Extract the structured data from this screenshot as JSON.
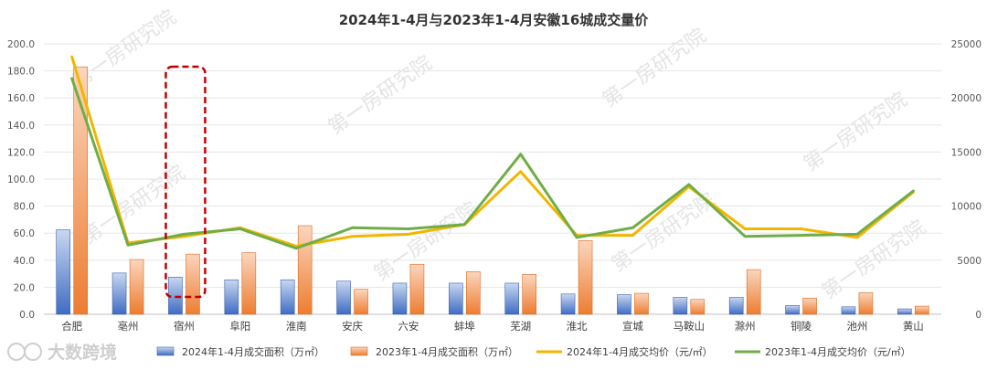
{
  "chart_data": {
    "type": "bar",
    "title": "2024年1-4月与2023年1-4月安徽16城成交量价",
    "categories": [
      "合肥",
      "亳州",
      "宿州",
      "阜阳",
      "淮南",
      "安庆",
      "六安",
      "蚌埠",
      "芜湖",
      "淮北",
      "宣城",
      "马鞍山",
      "滁州",
      "铜陵",
      "池州",
      "黄山"
    ],
    "ylim": [
      0,
      200
    ],
    "y2lim": [
      0,
      25000
    ],
    "y_ticks": [
      "0.0",
      "20.0",
      "40.0",
      "60.0",
      "80.0",
      "100.0",
      "120.0",
      "140.0",
      "160.0",
      "180.0",
      "200.0"
    ],
    "y2_ticks": [
      "0",
      "5000",
      "10000",
      "15000",
      "20000",
      "25000"
    ],
    "series": [
      {
        "name": "2024年1-4月成交面积（万㎡）",
        "kind": "bar",
        "axis": "left",
        "color": "#4472c4",
        "values": [
          62.5,
          30.5,
          27.5,
          25.5,
          25.5,
          24.5,
          23.0,
          23.0,
          23.0,
          15.0,
          14.5,
          12.5,
          12.5,
          6.5,
          5.5,
          4.0
        ]
      },
      {
        "name": "2023年1-4月成交面积（万㎡）",
        "kind": "bar",
        "axis": "left",
        "color": "#ed7d31",
        "values": [
          183.0,
          40.5,
          44.5,
          45.5,
          65.5,
          18.5,
          37.0,
          31.5,
          29.5,
          54.5,
          15.5,
          11.0,
          33.0,
          12.0,
          16.0,
          6.0
        ]
      },
      {
        "name": "2024年1-4月成交均价（元/㎡）",
        "kind": "line",
        "axis": "right",
        "color": "#f2b600",
        "values": [
          23800,
          6600,
          7200,
          8000,
          6300,
          7200,
          7400,
          8300,
          13200,
          7300,
          7300,
          11800,
          7900,
          7900,
          7100,
          11300
        ]
      },
      {
        "name": "2023年1-4月成交均价（元/㎡）",
        "kind": "line",
        "axis": "right",
        "color": "#70ad47",
        "values": [
          21800,
          6400,
          7400,
          7900,
          6100,
          8000,
          7900,
          8300,
          14800,
          7100,
          8000,
          12000,
          7200,
          7300,
          7400,
          11400
        ]
      }
    ],
    "highlight_category": "宿州",
    "legend_position": "bottom",
    "grid": true
  },
  "watermark_text": "第一房研究院",
  "brand_text": "大数跨境"
}
